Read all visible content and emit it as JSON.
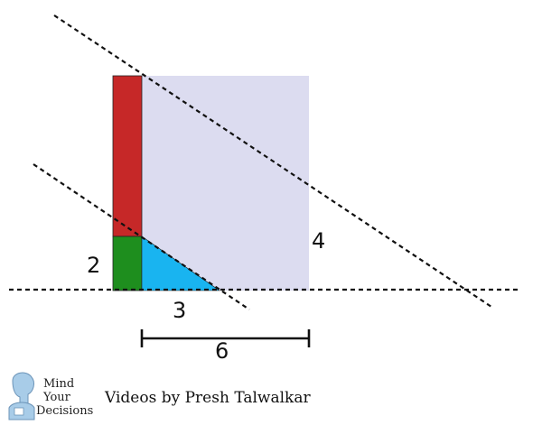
{
  "colors": {
    "square_fill": "#dcdcf0",
    "red_rect": "#c62828",
    "green_rect": "#1e8e1e",
    "blue_triangle": "#19b4f0",
    "dash_line": "#111111",
    "logo_head": "#a8cce8"
  },
  "labels": {
    "two": "2",
    "three": "3",
    "four": "4",
    "six": "6"
  },
  "logo": {
    "line1": "Mind",
    "line2": "Your",
    "line3": "Decisions"
  },
  "credit": "Videos by Presh Talwalkar",
  "icons": {
    "logo": "thinker-head-icon"
  }
}
